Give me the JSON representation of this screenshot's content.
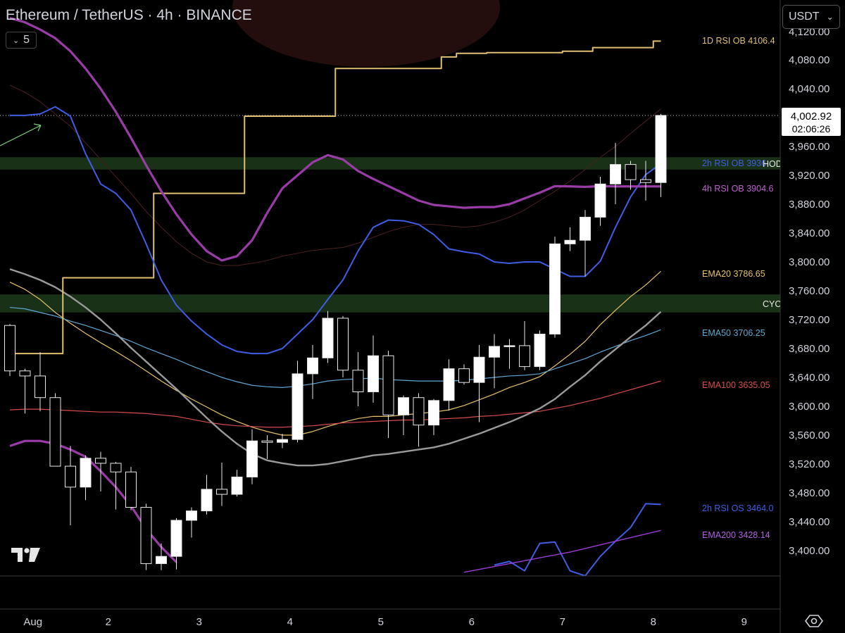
{
  "header": {
    "title": "Ethereum / TetherUS · 4h · BINANCE"
  },
  "interval_toggle": {
    "value": "5"
  },
  "currency_button": {
    "label": "USDT"
  },
  "icons": {
    "settings": "gear-icon",
    "logo": "tradingview-logo",
    "toggle": "chevron-down-icon"
  },
  "last_price": {
    "value": "4,002.92",
    "countdown": "02:06:26"
  },
  "chart_data": {
    "type": "candlestick",
    "title": "Ethereum / TetherUS · 4h · BINANCE",
    "y_ticks": [
      4080,
      4040,
      4000,
      3960,
      3920,
      3880,
      3840,
      3800,
      3760,
      3720,
      3680,
      3640,
      3600,
      3560,
      3520,
      3480,
      3440,
      3400
    ],
    "y_tick_labels": [
      "4,080.00",
      "4,040.00",
      "4,000.00",
      "3,960.00",
      "3,920.00",
      "3,880.00",
      "3,840.00",
      "3,800.00",
      "3,760.00",
      "3,720.00",
      "3,680.00",
      "3,640.00",
      "3,600.00",
      "3,560.00",
      "3,520.00",
      "3,480.00",
      "3,440.00",
      "3,400.00"
    ],
    "top_partial_tick": "4,120.00",
    "ylim": [
      3370,
      4140
    ],
    "x_ticks": [
      {
        "label": "Aug",
        "bar": 0.5
      },
      {
        "label": "2",
        "bar": 6.5
      },
      {
        "label": "3",
        "bar": 12.5
      },
      {
        "label": "4",
        "bar": 18.5
      },
      {
        "label": "5",
        "bar": 24.5
      },
      {
        "label": "6",
        "bar": 30.5
      },
      {
        "label": "7",
        "bar": 36.5
      },
      {
        "label": "8",
        "bar": 42.5
      },
      {
        "label": "9",
        "bar": 48.5
      }
    ],
    "colors": {
      "up": "#ffffff",
      "down": "#000000",
      "ema20": "#e6c26b",
      "ema50": "#5fa8d3",
      "ema100": "#d94c4c",
      "ema200": "#9a3cd6",
      "rsi1d": "#e0c070",
      "rsi2h": "#3f5ee6",
      "rsi4h": "#9a3ca8",
      "sma_gray": "#9a9a9a",
      "zone": "#1d3a1a"
    },
    "candles": [
      [
        3712,
        3714,
        3642,
        3649
      ],
      [
        3649,
        3652,
        3590,
        3642
      ],
      [
        3642,
        3675,
        3593,
        3612
      ],
      [
        3612,
        3618,
        3517,
        3517
      ],
      [
        3517,
        3545,
        3435,
        3488
      ],
      [
        3488,
        3532,
        3470,
        3528
      ],
      [
        3528,
        3537,
        3482,
        3521
      ],
      [
        3521,
        3523,
        3457,
        3509
      ],
      [
        3509,
        3516,
        3456,
        3460
      ],
      [
        3460,
        3465,
        3373,
        3382
      ],
      [
        3382,
        3410,
        3373,
        3392
      ],
      [
        3392,
        3445,
        3374,
        3442
      ],
      [
        3442,
        3460,
        3418,
        3455
      ],
      [
        3455,
        3505,
        3450,
        3485
      ],
      [
        3485,
        3522,
        3462,
        3478
      ],
      [
        3478,
        3512,
        3475,
        3502
      ],
      [
        3502,
        3568,
        3492,
        3552
      ],
      [
        3552,
        3560,
        3527,
        3550
      ],
      [
        3550,
        3562,
        3542,
        3554
      ],
      [
        3554,
        3663,
        3550,
        3645
      ],
      [
        3645,
        3685,
        3610,
        3667
      ],
      [
        3667,
        3732,
        3660,
        3722
      ],
      [
        3722,
        3725,
        3640,
        3650
      ],
      [
        3650,
        3675,
        3600,
        3620
      ],
      [
        3620,
        3698,
        3605,
        3670
      ],
      [
        3670,
        3677,
        3556,
        3588
      ],
      [
        3588,
        3615,
        3560,
        3612
      ],
      [
        3612,
        3618,
        3544,
        3574
      ],
      [
        3574,
        3610,
        3560,
        3608
      ],
      [
        3608,
        3665,
        3594,
        3652
      ],
      [
        3652,
        3658,
        3630,
        3633
      ],
      [
        3633,
        3685,
        3578,
        3668
      ],
      [
        3668,
        3700,
        3625,
        3683
      ],
      [
        3683,
        3693,
        3652,
        3684
      ],
      [
        3684,
        3718,
        3650,
        3655
      ],
      [
        3655,
        3705,
        3650,
        3700
      ],
      [
        3700,
        3835,
        3695,
        3825
      ],
      [
        3825,
        3848,
        3815,
        3830
      ],
      [
        3830,
        3872,
        3780,
        3862
      ],
      [
        3862,
        3918,
        3850,
        3908
      ],
      [
        3908,
        3965,
        3880,
        3935
      ],
      [
        3935,
        3940,
        3900,
        3914
      ],
      [
        3914,
        3940,
        3885,
        3910
      ],
      [
        3910,
        4005,
        3890,
        4003
      ]
    ],
    "series": [
      {
        "name": "EMA20",
        "label": "EMA20 3786.65",
        "last": 3786.65,
        "values": [
          3772,
          3762,
          3748,
          3730,
          3715,
          3701,
          3688,
          3676,
          3663,
          3649,
          3635,
          3622,
          3610,
          3599,
          3588,
          3579,
          3571,
          3565,
          3560,
          3560,
          3565,
          3572,
          3578,
          3583,
          3586,
          3586,
          3588,
          3590,
          3592,
          3595,
          3601,
          3609,
          3617,
          3626,
          3633,
          3641,
          3656,
          3672,
          3690,
          3713,
          3733,
          3752,
          3768,
          3787
        ]
      },
      {
        "name": "EMA50",
        "label": "EMA50 3706.25",
        "last": 3706.25,
        "values": [
          3737,
          3735,
          3730,
          3725,
          3718,
          3712,
          3705,
          3698,
          3690,
          3681,
          3673,
          3665,
          3656,
          3648,
          3640,
          3634,
          3629,
          3627,
          3626,
          3628,
          3631,
          3635,
          3637,
          3638,
          3639,
          3637,
          3636,
          3635,
          3635,
          3635,
          3636,
          3638,
          3640,
          3642,
          3643,
          3645,
          3652,
          3659,
          3666,
          3675,
          3683,
          3691,
          3698,
          3706
        ]
      },
      {
        "name": "EMA100",
        "label": "EMA100 3635.05",
        "last": 3635.05,
        "values": [
          3595,
          3596,
          3596,
          3595,
          3594,
          3593,
          3592,
          3592,
          3591,
          3590,
          3588,
          3586,
          3582,
          3578,
          3575,
          3573,
          3572,
          3571,
          3571,
          3572,
          3573,
          3575,
          3577,
          3578,
          3579,
          3580,
          3581,
          3581,
          3582,
          3583,
          3584,
          3586,
          3587,
          3589,
          3591,
          3593,
          3597,
          3601,
          3606,
          3611,
          3617,
          3623,
          3629,
          3635
        ]
      },
      {
        "name": "SMA",
        "label": "",
        "last": 3731,
        "values": [
          3790,
          3783,
          3775,
          3765,
          3752,
          3737,
          3720,
          3701,
          3681,
          3662,
          3643,
          3624,
          3604,
          3584,
          3565,
          3548,
          3534,
          3525,
          3521,
          3518,
          3518,
          3520,
          3524,
          3528,
          3532,
          3534,
          3537,
          3540,
          3543,
          3548,
          3555,
          3562,
          3570,
          3578,
          3587,
          3597,
          3610,
          3627,
          3643,
          3662,
          3679,
          3696,
          3712,
          3731
        ]
      },
      {
        "name": "1D RSI OB",
        "label": "1D RSI OB 4106.4",
        "last": 4106.4,
        "step": true,
        "values": [
          3673,
          3673,
          3673,
          3673,
          3778,
          3778,
          3778,
          3778,
          3778,
          3778,
          3895,
          3895,
          3895,
          3895,
          3895,
          3895,
          4002,
          4002,
          4002,
          4002,
          4002,
          4002,
          4068,
          4068,
          4068,
          4068,
          4068,
          4068,
          4068,
          4084,
          4089,
          4089,
          4090,
          4090,
          4090,
          4090,
          4090,
          4092,
          4092,
          4097,
          4097,
          4097,
          4097,
          4106
        ]
      },
      {
        "name": "2h RSI OB",
        "label": "2h RSI OB 3936",
        "last": 3936,
        "values": [
          4003,
          4003,
          4005,
          4015,
          4002,
          3950,
          3908,
          3895,
          3872,
          3825,
          3775,
          3740,
          3718,
          3700,
          3685,
          3676,
          3673,
          3673,
          3680,
          3700,
          3720,
          3748,
          3775,
          3815,
          3848,
          3858,
          3857,
          3852,
          3838,
          3818,
          3814,
          3811,
          3800,
          3798,
          3800,
          3800,
          3790,
          3780,
          3780,
          3801,
          3848,
          3890,
          3921,
          3936
        ]
      },
      {
        "name": "4h RSI OB",
        "label": "4h RSI OB 3904.6",
        "last": 3904.6,
        "values": [
          4138,
          4132,
          4122,
          4110,
          4092,
          4068,
          4040,
          4008,
          3972,
          3934,
          3898,
          3866,
          3838,
          3815,
          3802,
          3808,
          3830,
          3868,
          3902,
          3920,
          3938,
          3948,
          3942,
          3926,
          3915,
          3905,
          3895,
          3885,
          3879,
          3877,
          3875,
          3876,
          3876,
          3880,
          3888,
          3896,
          3905,
          3904.6,
          3904,
          3905,
          3904.6,
          3904.6,
          3904.6,
          3904.6
        ]
      },
      {
        "name": "4h RSI OS",
        "label": "",
        "last": null,
        "values": [
          3545,
          3552,
          3552,
          3548,
          3540,
          3530,
          3510,
          3488,
          3462,
          3430,
          3405,
          3384
        ]
      },
      {
        "name": "2h RSI OS",
        "label": "2h RSI OS 3464.0",
        "last": 3464.0,
        "values": [
          null,
          null,
          null,
          null,
          null,
          null,
          null,
          null,
          null,
          null,
          null,
          null,
          null,
          null,
          null,
          null,
          null,
          null,
          null,
          null,
          null,
          null,
          null,
          null,
          null,
          null,
          null,
          null,
          null,
          null,
          null,
          null,
          3380,
          3385,
          3372,
          3410,
          3412,
          3372,
          3365,
          3392,
          3413,
          3432,
          3465,
          3464
        ]
      },
      {
        "name": "EMA200",
        "label": "EMA200 3428.14",
        "last": 3428.14,
        "values": [
          null,
          null,
          null,
          null,
          null,
          null,
          null,
          null,
          null,
          null,
          null,
          null,
          null,
          null,
          null,
          null,
          null,
          null,
          null,
          null,
          null,
          null,
          null,
          null,
          null,
          null,
          null,
          null,
          null,
          null,
          3370,
          3374,
          3378,
          3382,
          3386,
          3390,
          3394,
          3398,
          3403,
          3408,
          3413,
          3418,
          3423,
          3428
        ]
      }
    ],
    "zones": [
      {
        "low": 3928,
        "high": 3945,
        "label": "HOD"
      },
      {
        "low": 3730,
        "high": 3755,
        "label": "CYC"
      }
    ]
  }
}
